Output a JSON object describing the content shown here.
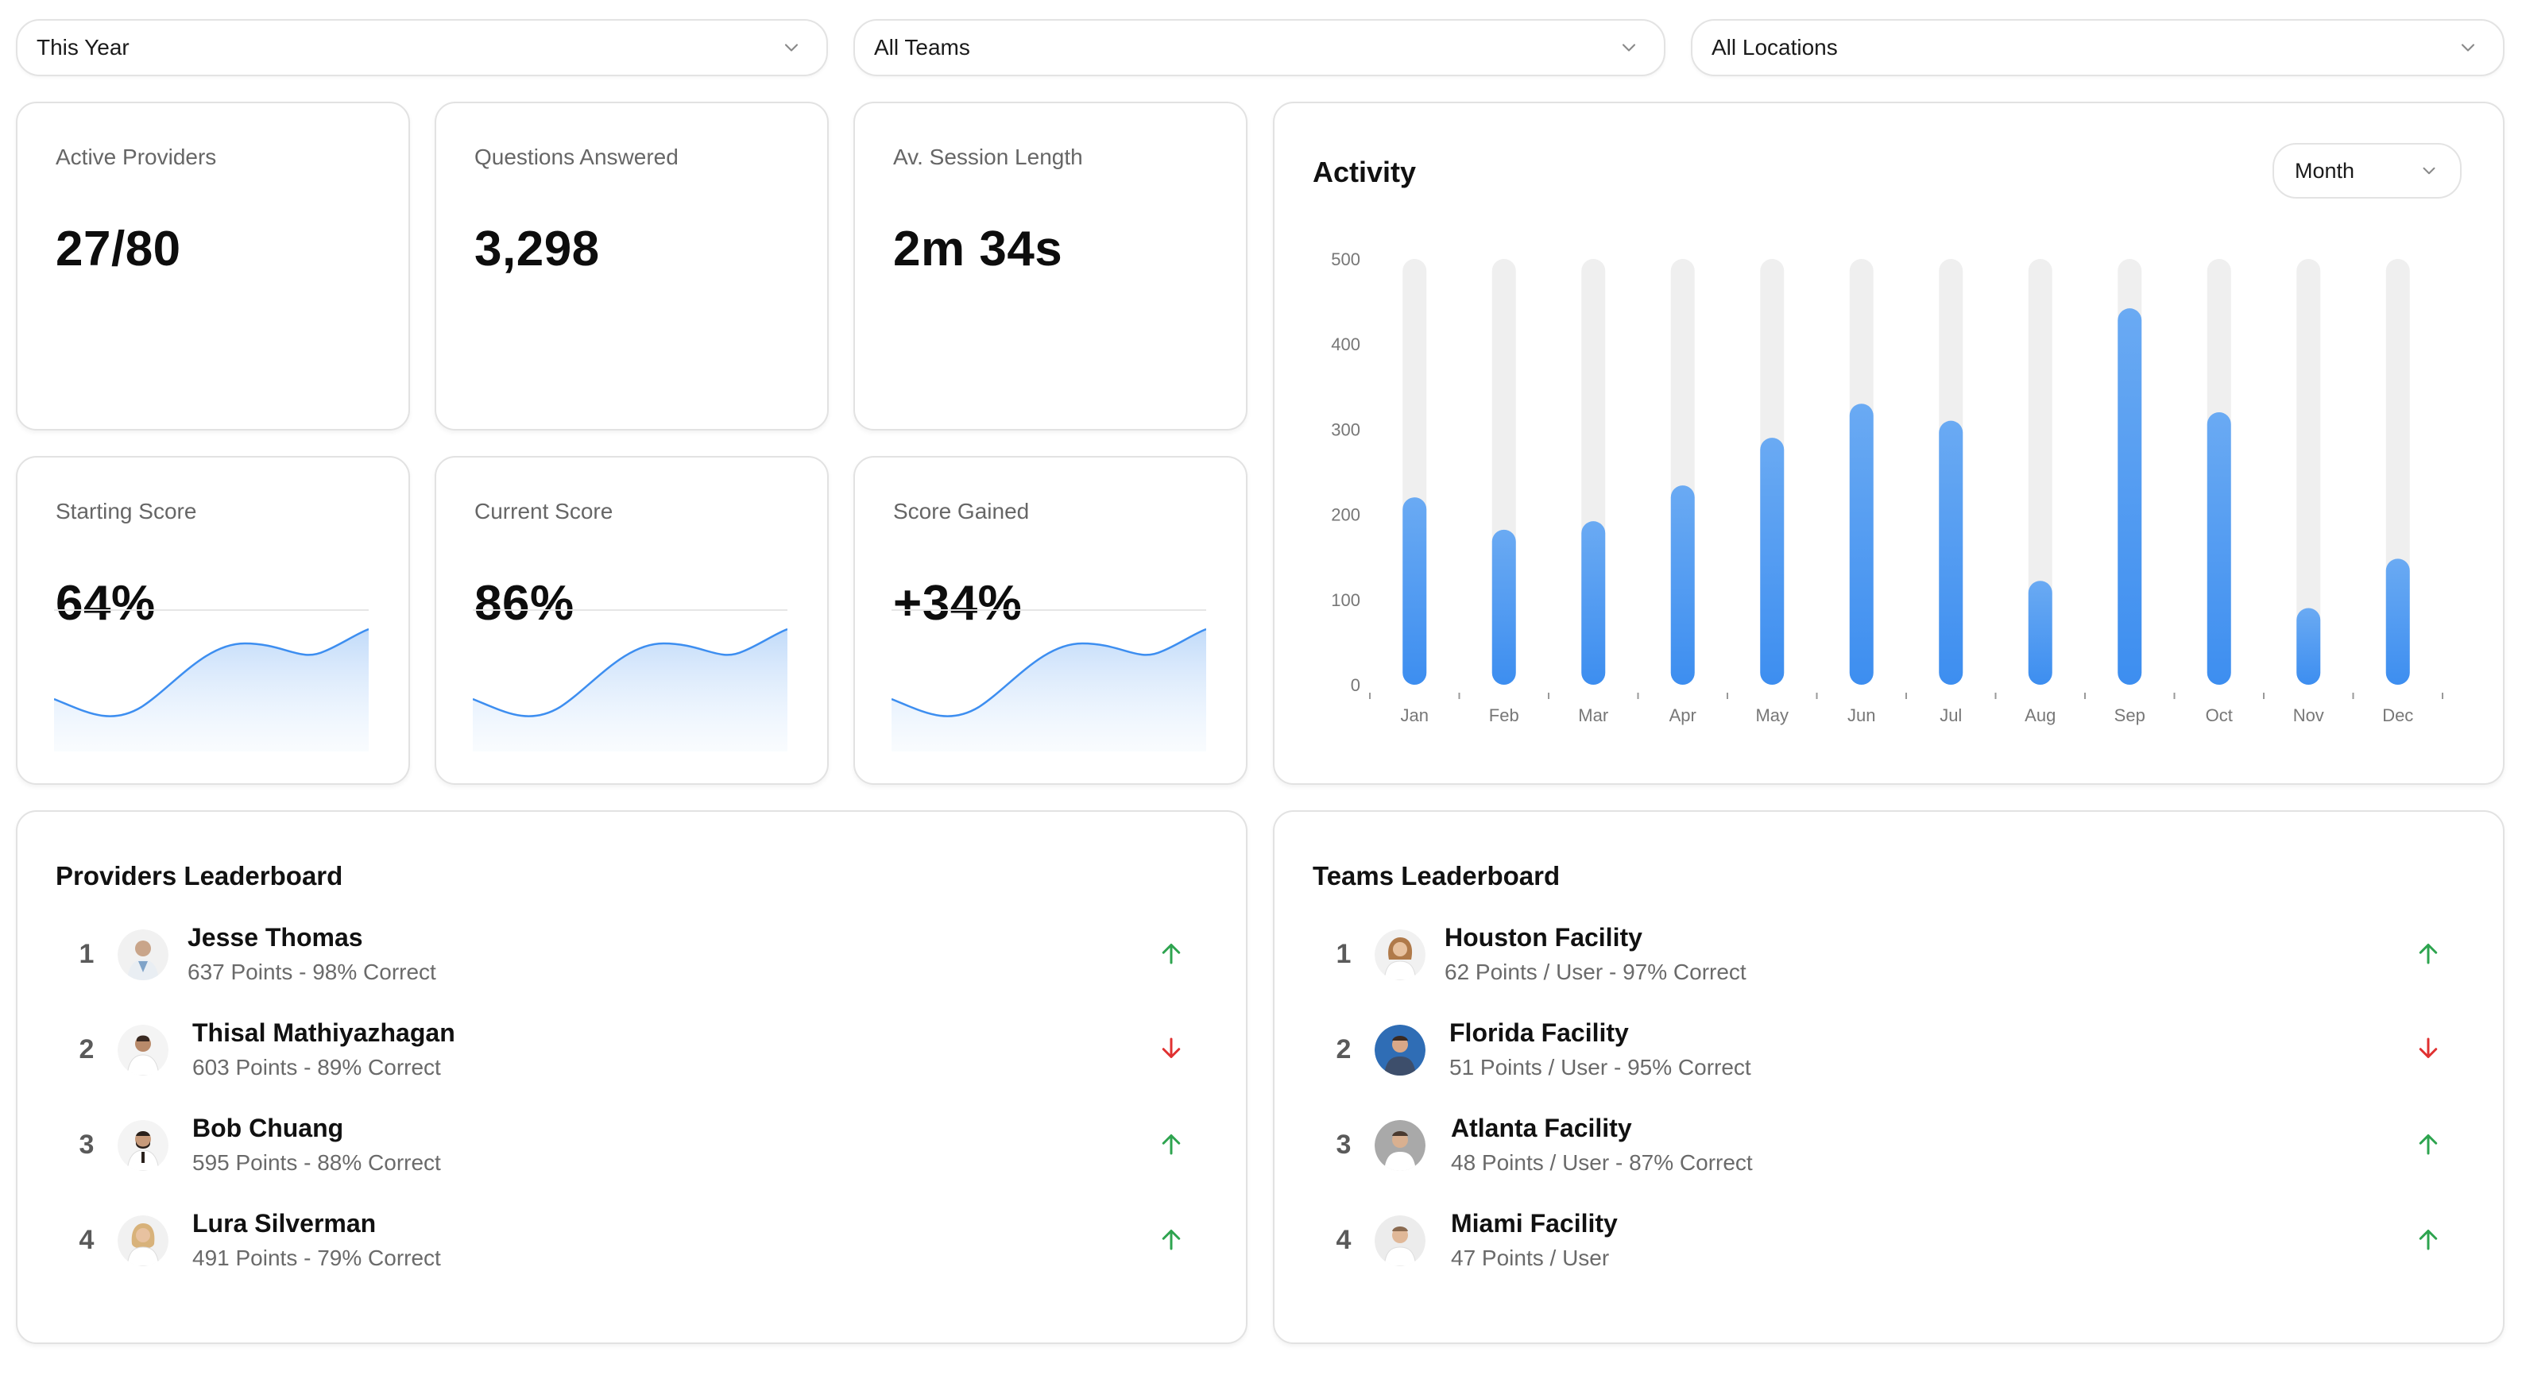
{
  "filters": {
    "period": "This Year",
    "teams": "All Teams",
    "locations": "All Locations"
  },
  "stats": {
    "active_providers": {
      "label": "Active Providers",
      "value": "27/80"
    },
    "questions_answered": {
      "label": "Questions Answered",
      "value": "3,298"
    },
    "session_length": {
      "label": "Av. Session Length",
      "value": "2m 34s"
    },
    "starting_score": {
      "label": "Starting Score",
      "value": "64%"
    },
    "current_score": {
      "label": "Current Score",
      "value": "86%"
    },
    "score_gained": {
      "label": "Score Gained",
      "value": "+34%"
    }
  },
  "activity": {
    "title": "Activity",
    "range_select": "Month"
  },
  "chart_data": {
    "type": "bar",
    "title": "Activity",
    "categories": [
      "Jan",
      "Feb",
      "Mar",
      "Apr",
      "May",
      "Jun",
      "Jul",
      "Aug",
      "Sep",
      "Oct",
      "Nov",
      "Dec"
    ],
    "values": [
      220,
      182,
      192,
      234,
      290,
      330,
      310,
      122,
      442,
      320,
      90,
      148
    ],
    "ylim": [
      0,
      500
    ],
    "yticks": [
      "0",
      "100",
      "200",
      "300",
      "400",
      "500"
    ],
    "max_track": 500,
    "grid": false,
    "bar_color": "#3d8ef0",
    "track_color": "#efefef"
  },
  "providers": {
    "title": "Providers Leaderboard",
    "rows": [
      {
        "rank": "1",
        "name": "Jesse Thomas",
        "stats": "637 Points - 98% Correct",
        "trend": "up"
      },
      {
        "rank": "2",
        "name": "Thisal Mathiyazhagan",
        "stats": "603 Points - 89% Correct",
        "trend": "down"
      },
      {
        "rank": "3",
        "name": "Bob Chuang",
        "stats": "595 Points - 88% Correct",
        "trend": "up"
      },
      {
        "rank": "4",
        "name": "Lura Silverman",
        "stats": "491 Points - 79% Correct",
        "trend": "up"
      }
    ]
  },
  "teams": {
    "title": "Teams Leaderboard",
    "rows": [
      {
        "rank": "1",
        "name": "Houston Facility",
        "stats": "62 Points / User - 97% Correct",
        "trend": "up"
      },
      {
        "rank": "2",
        "name": "Florida Facility",
        "stats": "51 Points / User - 95% Correct",
        "trend": "down"
      },
      {
        "rank": "3",
        "name": "Atlanta Facility",
        "stats": "48 Points / User - 87% Correct",
        "trend": "up"
      },
      {
        "rank": "4",
        "name": "Miami Facility",
        "stats": "47 Points / User",
        "trend": "up"
      }
    ]
  },
  "colors": {
    "accent": "#3d8ef0",
    "trend_up": "#2ea44f",
    "trend_down": "#e03131"
  }
}
